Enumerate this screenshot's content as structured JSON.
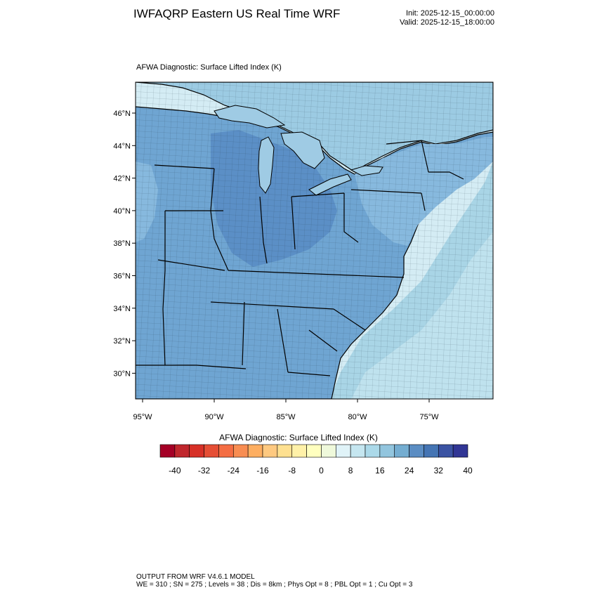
{
  "header": {
    "title": "IWFAQRP Eastern US Real Time WRF",
    "init": "Init: 2025-12-15_00:00:00",
    "valid": "Valid: 2025-12-15_18:00:00"
  },
  "map": {
    "field_label": "AFWA Diagnostic: Surface Lifted Index   (K)",
    "lat_labels": [
      "46°N",
      "44°N",
      "42°N",
      "40°N",
      "38°N",
      "36°N",
      "34°N",
      "32°N",
      "30°N"
    ],
    "lon_labels": [
      "95°W",
      "90°W",
      "85°W",
      "80°W",
      "75°W"
    ],
    "colors": {
      "ocean_far": "#d4ecf4",
      "ocean_mid": "#bfe2ee",
      "ocean_near": "#a9d5e6",
      "land_main": "#6fa5d2",
      "land_dark": "#5b8fc6",
      "land_light": "#87b9de",
      "great_lakes": "#9fcbe4",
      "canada": "#9ccbe3"
    }
  },
  "colorbar": {
    "title": "AFWA Diagnostic: Surface Lifted Index  (K)",
    "tick_labels": [
      "-40",
      "-32",
      "-24",
      "-16",
      "-8",
      "0",
      "8",
      "16",
      "24",
      "32",
      "40"
    ],
    "colors": [
      "#a50026",
      "#c0272d",
      "#d73027",
      "#e54e35",
      "#f46d43",
      "#f88d52",
      "#fdae61",
      "#fec980",
      "#fee090",
      "#fff1a8",
      "#ffffbf",
      "#eff9db",
      "#e0f3f8",
      "#c5e6f0",
      "#abd9e9",
      "#92c5de",
      "#74add1",
      "#5b8dc3",
      "#4575b4",
      "#3b53a3",
      "#313695"
    ]
  },
  "footer": {
    "line1": "OUTPUT FROM WRF V4.6.1 MODEL",
    "line2": "WE = 310 ; SN = 275 ; Levels = 38 ; Dis = 8km ; Phys Opt = 8 ; PBL Opt = 1 ; Cu Opt = 3"
  }
}
